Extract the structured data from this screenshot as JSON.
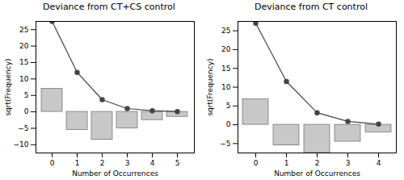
{
  "chart_data": [
    {
      "type": "bar",
      "title": "Deviance from CT+CS control",
      "xlabel": "Number of Occurrences",
      "ylabel": "sqrt(Frequency)",
      "categories": [
        0,
        1,
        2,
        3,
        4,
        5
      ],
      "series": [
        {
          "type": "bar",
          "color": "#c8c8c8",
          "bottoms": [
            0,
            -5.5,
            -8.5,
            -5.0,
            -2.5,
            -1.5
          ],
          "values": [
            7.0,
            0.0,
            0.0,
            0.0,
            0.0,
            0.0
          ]
        },
        {
          "type": "line",
          "color": "#444444",
          "marker": "circle",
          "values": [
            27.5,
            12.0,
            3.7,
            1.0,
            0.35,
            0.1
          ]
        }
      ],
      "ylim": [
        -12.5,
        27.5
      ],
      "yticks": [
        -10,
        -5,
        0,
        5,
        10,
        15,
        20,
        25
      ]
    },
    {
      "type": "bar",
      "title": "Deviance from CT control",
      "xlabel": "Number of Occurrences",
      "ylabel": "sqrt(Frequency)",
      "categories": [
        0,
        1,
        2,
        3,
        4
      ],
      "series": [
        {
          "type": "bar",
          "color": "#c8c8c8",
          "bottoms": [
            0,
            -5.5,
            -7.5,
            -4.5,
            -2.0
          ],
          "values": [
            6.8,
            0.0,
            0.0,
            0.0,
            0.0
          ]
        },
        {
          "type": "line",
          "color": "#444444",
          "marker": "circle",
          "values": [
            27.0,
            11.5,
            3.2,
            0.9,
            0.15
          ]
        }
      ],
      "ylim": [
        -7.5,
        27.5
      ],
      "yticks": [
        -5,
        0,
        5,
        10,
        15,
        20,
        25
      ]
    }
  ]
}
